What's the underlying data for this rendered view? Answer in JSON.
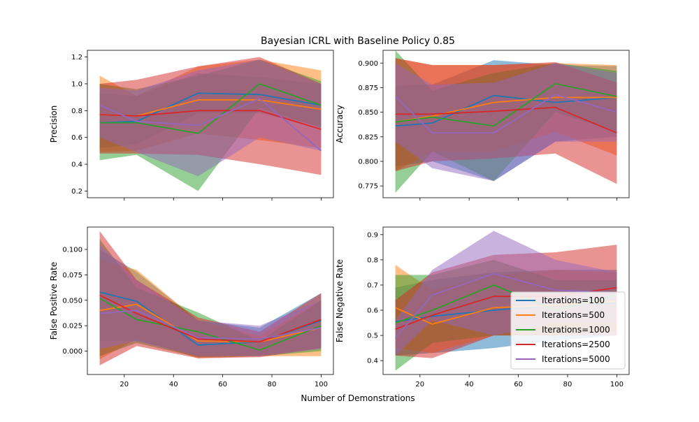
{
  "figure": {
    "suptitle": "Bayesian ICRL with Baseline Policy 0.85",
    "xlabel": "Number of Demonstrations"
  },
  "chart_data": [
    {
      "type": "line",
      "title": "",
      "xlabel": "",
      "ylabel": "Precision",
      "xlim": [
        5,
        105
      ],
      "ylim": [
        0.15,
        1.25
      ],
      "xticks": [
        20,
        40,
        60,
        80,
        100
      ],
      "show_xtick_labels": false,
      "yticks": [
        0.2,
        0.4,
        0.6,
        0.8,
        1.0,
        1.2
      ],
      "ytick_labels": [
        "0.2",
        "0.4",
        "0.6",
        "0.8",
        "1.0",
        "1.2"
      ],
      "x": [
        10,
        25,
        50,
        75,
        100
      ],
      "series": [
        {
          "name": "Iterations=100",
          "values": [
            0.71,
            0.72,
            0.93,
            0.92,
            0.84
          ],
          "lower": [
            0.52,
            0.55,
            0.78,
            0.78,
            0.68
          ],
          "upper": [
            0.93,
            0.91,
            1.08,
            1.05,
            1.0
          ]
        },
        {
          "name": "Iterations=500",
          "values": [
            0.77,
            0.76,
            0.88,
            0.88,
            0.81
          ],
          "lower": [
            0.49,
            0.5,
            0.63,
            0.58,
            0.52
          ],
          "upper": [
            1.06,
            0.91,
            1.13,
            1.18,
            1.1
          ]
        },
        {
          "name": "Iterations=1000",
          "values": [
            0.71,
            0.71,
            0.63,
            1.0,
            0.84
          ],
          "lower": [
            0.43,
            0.47,
            0.2,
            0.82,
            0.67
          ],
          "upper": [
            1.0,
            0.96,
            1.06,
            1.18,
            1.02
          ]
        },
        {
          "name": "Iterations=2500",
          "values": [
            0.77,
            0.76,
            0.8,
            0.8,
            0.66
          ],
          "lower": [
            0.48,
            0.48,
            0.47,
            0.4,
            0.32
          ],
          "upper": [
            1.0,
            1.03,
            1.13,
            1.2,
            1.0
          ]
        },
        {
          "name": "Iterations=5000",
          "values": [
            0.84,
            0.72,
            0.69,
            0.89,
            0.5
          ],
          "lower": [
            0.6,
            0.49,
            0.31,
            0.6,
            0.5
          ],
          "upper": [
            0.97,
            0.95,
            1.1,
            1.18,
            1.0
          ]
        }
      ]
    },
    {
      "type": "line",
      "title": "",
      "xlabel": "",
      "ylabel": "Accuracy",
      "xlim": [
        5,
        105
      ],
      "ylim": [
        0.763,
        0.913
      ],
      "xticks": [
        20,
        40,
        60,
        80,
        100
      ],
      "show_xtick_labels": false,
      "yticks": [
        0.775,
        0.8,
        0.825,
        0.85,
        0.875,
        0.9
      ],
      "ytick_labels": [
        "0.775",
        "0.800",
        "0.825",
        "0.850",
        "0.875",
        "0.900"
      ],
      "x": [
        10,
        25,
        50,
        75,
        100
      ],
      "series": [
        {
          "name": "Iterations=100",
          "values": [
            0.836,
            0.839,
            0.867,
            0.86,
            0.865
          ],
          "lower": [
            0.795,
            0.8,
            0.78,
            0.82,
            0.825
          ],
          "upper": [
            0.877,
            0.878,
            0.903,
            0.898,
            0.897
          ]
        },
        {
          "name": "Iterations=500",
          "values": [
            0.84,
            0.846,
            0.86,
            0.865,
            0.865
          ],
          "lower": [
            0.79,
            0.81,
            0.81,
            0.83,
            0.806
          ],
          "upper": [
            0.905,
            0.898,
            0.898,
            0.9,
            0.898
          ]
        },
        {
          "name": "Iterations=1000",
          "values": [
            0.84,
            0.845,
            0.836,
            0.879,
            0.866
          ],
          "lower": [
            0.768,
            0.81,
            0.78,
            0.85,
            0.83
          ],
          "upper": [
            0.913,
            0.872,
            0.89,
            0.9,
            0.892
          ]
        },
        {
          "name": "Iterations=2500",
          "values": [
            0.848,
            0.848,
            0.851,
            0.855,
            0.829
          ],
          "lower": [
            0.79,
            0.8,
            0.803,
            0.808,
            0.777
          ],
          "upper": [
            0.905,
            0.898,
            0.898,
            0.901,
            0.88
          ]
        },
        {
          "name": "Iterations=5000",
          "values": [
            0.866,
            0.829,
            0.829,
            0.868,
            0.85
          ],
          "lower": [
            0.82,
            0.793,
            0.78,
            0.82,
            0.82
          ],
          "upper": [
            0.9,
            0.878,
            0.88,
            0.9,
            0.89
          ]
        }
      ]
    },
    {
      "type": "line",
      "title": "",
      "xlabel": "",
      "ylabel": "False Positive Rate",
      "xlim": [
        5,
        105
      ],
      "ylim": [
        -0.023,
        0.122
      ],
      "xticks": [
        20,
        40,
        60,
        80,
        100
      ],
      "show_xtick_labels": true,
      "xtick_labels": [
        "20",
        "40",
        "60",
        "80",
        "100"
      ],
      "yticks": [
        0.0,
        0.025,
        0.05,
        0.075,
        0.1
      ],
      "ytick_labels": [
        "0.000",
        "0.025",
        "0.050",
        "0.075",
        "0.100"
      ],
      "x": [
        10,
        25,
        50,
        75,
        100
      ],
      "series": [
        {
          "name": "Iterations=100",
          "values": [
            0.058,
            0.049,
            0.006,
            0.009,
            0.03
          ],
          "lower": [
            0.01,
            0.01,
            -0.005,
            -0.004,
            0.003
          ],
          "upper": [
            0.1,
            0.078,
            0.03,
            0.023,
            0.057
          ]
        },
        {
          "name": "Iterations=500",
          "values": [
            0.04,
            0.046,
            0.01,
            0.009,
            0.023
          ],
          "lower": [
            -0.008,
            0.012,
            -0.007,
            -0.005,
            -0.005
          ],
          "upper": [
            0.09,
            0.08,
            0.03,
            0.015,
            0.05
          ]
        },
        {
          "name": "Iterations=1000",
          "values": [
            0.052,
            0.031,
            0.019,
            0.001,
            0.025
          ],
          "lower": [
            -0.005,
            0.008,
            -0.006,
            -0.005,
            0.0
          ],
          "upper": [
            0.11,
            0.062,
            0.038,
            0.01,
            0.05
          ]
        },
        {
          "name": "Iterations=2500",
          "values": [
            0.055,
            0.037,
            0.012,
            0.009,
            0.031
          ],
          "lower": [
            -0.014,
            0.005,
            -0.007,
            -0.006,
            0.003
          ],
          "upper": [
            0.118,
            0.07,
            0.033,
            0.019,
            0.057
          ]
        },
        {
          "name": "Iterations=5000",
          "values": [
            0.037,
            0.04,
            0.013,
            0.012,
            0.023
          ],
          "lower": [
            0.002,
            0.01,
            -0.005,
            -0.005,
            0.002
          ],
          "upper": [
            0.105,
            0.07,
            0.03,
            0.025,
            0.05
          ]
        }
      ]
    },
    {
      "type": "line",
      "title": "",
      "xlabel": "",
      "ylabel": "False Negative Rate",
      "xlim": [
        5,
        105
      ],
      "ylim": [
        0.345,
        0.93
      ],
      "xticks": [
        20,
        40,
        60,
        80,
        100
      ],
      "show_xtick_labels": true,
      "xtick_labels": [
        "20",
        "40",
        "60",
        "80",
        "100"
      ],
      "yticks": [
        0.4,
        0.5,
        0.6,
        0.7,
        0.8,
        0.9
      ],
      "ytick_labels": [
        "0.4",
        "0.5",
        "0.6",
        "0.7",
        "0.8",
        "0.9"
      ],
      "x": [
        10,
        25,
        50,
        75,
        100
      ],
      "series": [
        {
          "name": "Iterations=100",
          "values": [
            0.555,
            0.576,
            0.6,
            0.62,
            0.63
          ],
          "lower": [
            0.42,
            0.43,
            0.45,
            0.48,
            0.5
          ],
          "upper": [
            0.69,
            0.72,
            0.75,
            0.76,
            0.76
          ]
        },
        {
          "name": "Iterations=500",
          "values": [
            0.61,
            0.545,
            0.61,
            0.62,
            0.635
          ],
          "lower": [
            0.45,
            0.43,
            0.5,
            0.5,
            0.52
          ],
          "upper": [
            0.78,
            0.68,
            0.74,
            0.76,
            0.75
          ]
        },
        {
          "name": "Iterations=1000",
          "values": [
            0.55,
            0.6,
            0.7,
            0.6,
            0.66
          ],
          "lower": [
            0.36,
            0.47,
            0.5,
            0.5,
            0.52
          ],
          "upper": [
            0.74,
            0.74,
            0.8,
            0.72,
            0.72
          ]
        },
        {
          "name": "Iterations=2500",
          "values": [
            0.525,
            0.58,
            0.655,
            0.655,
            0.69
          ],
          "lower": [
            0.42,
            0.41,
            0.5,
            0.5,
            0.5
          ],
          "upper": [
            0.64,
            0.75,
            0.82,
            0.83,
            0.86
          ]
        },
        {
          "name": "Iterations=5000",
          "values": [
            0.49,
            0.66,
            0.745,
            0.68,
            0.67
          ],
          "lower": [
            0.42,
            0.56,
            0.5,
            0.55,
            0.55
          ],
          "upper": [
            0.56,
            0.76,
            0.915,
            0.8,
            0.75
          ]
        }
      ]
    }
  ],
  "legend": {
    "placement": "lower right of the False Negative Rate panel",
    "entries": [
      {
        "label": "Iterations=100",
        "color": "#1f77b4"
      },
      {
        "label": "Iterations=500",
        "color": "#ff7f0e"
      },
      {
        "label": "Iterations=1000",
        "color": "#2ca02c"
      },
      {
        "label": "Iterations=2500",
        "color": "#d62728"
      },
      {
        "label": "Iterations=5000",
        "color": "#9467bd"
      }
    ]
  },
  "colors": [
    "#1f77b4",
    "#ff7f0e",
    "#2ca02c",
    "#d62728",
    "#9467bd"
  ]
}
